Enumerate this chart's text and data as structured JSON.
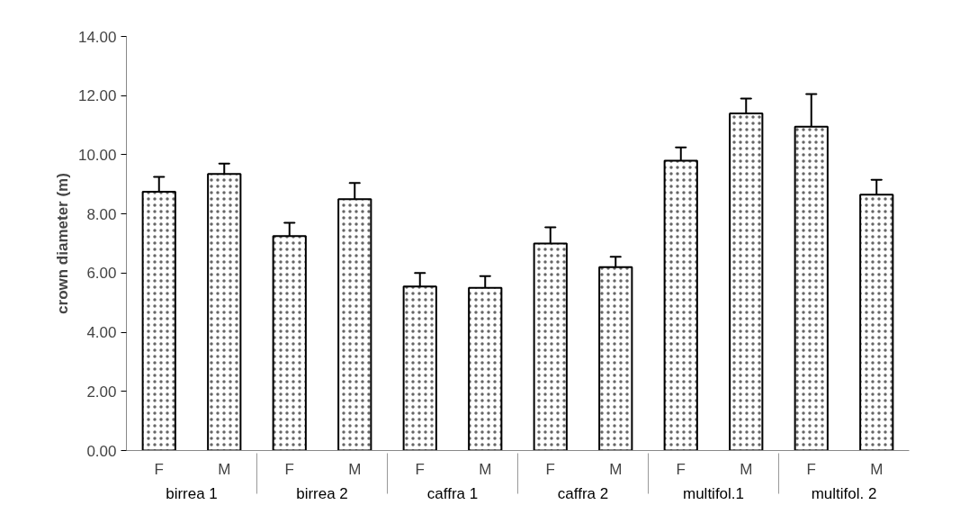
{
  "chart_data": {
    "type": "bar",
    "ylabel": "crown diameter (m)",
    "categories": [
      "F",
      "M",
      "F",
      "M",
      "F",
      "M",
      "F",
      "M",
      "F",
      "M",
      "F",
      "M"
    ],
    "annotations": [
      "birrea 1",
      "birrea 2",
      "caffra 1",
      "caffra 2",
      "multifol.1",
      "multifol. 2"
    ],
    "values": [
      8.75,
      9.35,
      7.25,
      8.5,
      5.55,
      5.5,
      7.0,
      6.2,
      9.8,
      11.4,
      10.95,
      8.65
    ],
    "errors": [
      [
        8.75,
        9.25
      ],
      [
        9.35,
        9.7
      ],
      [
        7.25,
        7.7
      ],
      [
        8.5,
        9.05
      ],
      [
        5.55,
        6.0
      ],
      [
        5.5,
        5.9
      ],
      [
        7.0,
        7.55
      ],
      [
        6.2,
        6.55
      ],
      [
        9.8,
        10.25
      ],
      [
        11.4,
        11.9
      ],
      [
        10.95,
        12.05
      ],
      [
        8.65,
        9.15
      ]
    ],
    "color": "#ffffff",
    "ylim": [
      0,
      14
    ],
    "yticks": [
      {
        "value": 0,
        "label": "0.00"
      },
      {
        "value": 2,
        "label": "2.00"
      },
      {
        "value": 4,
        "label": "4.00"
      },
      {
        "value": 6,
        "label": "6.00"
      },
      {
        "value": 8,
        "label": "8.00"
      },
      {
        "value": 10,
        "label": "10.00"
      },
      {
        "value": 12,
        "label": "12.00"
      },
      {
        "value": 14,
        "label": "14.00"
      }
    ],
    "grid": false
  }
}
